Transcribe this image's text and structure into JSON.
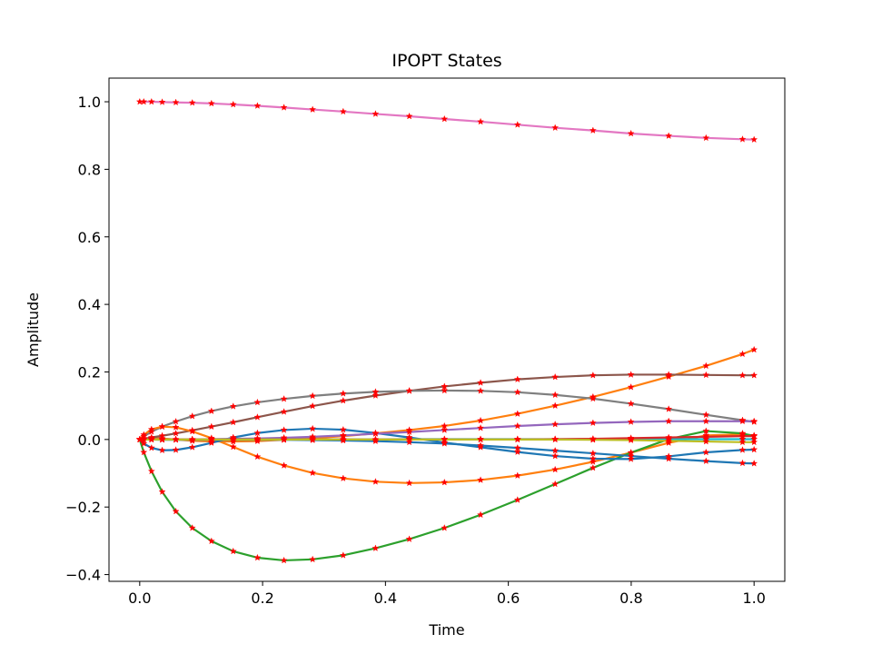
{
  "chart_data": {
    "type": "line",
    "title": "IPOPT States",
    "xlabel": "Time",
    "ylabel": "Amplitude",
    "xlim": [
      -0.05,
      1.05
    ],
    "ylim": [
      -0.42,
      1.07
    ],
    "xticks": [
      0.0,
      0.2,
      0.4,
      0.6,
      0.8,
      1.0
    ],
    "xtick_labels": [
      "0.0",
      "0.2",
      "0.4",
      "0.6",
      "0.8",
      "1.0"
    ],
    "yticks": [
      -0.4,
      -0.2,
      0.0,
      0.2,
      0.4,
      0.6,
      0.8,
      1.0
    ],
    "ytick_labels": [
      "−0.4",
      "−0.2",
      "0.0",
      "0.2",
      "0.4",
      "0.6",
      "0.8",
      "1.0"
    ],
    "grid": false,
    "legend": "none",
    "marker": {
      "shape": "star",
      "color": "#ff0000"
    },
    "x": [
      0.0,
      0.0066,
      0.0192,
      0.0366,
      0.0588,
      0.0856,
      0.1168,
      0.1522,
      0.1916,
      0.2348,
      0.2814,
      0.3312,
      0.3838,
      0.4388,
      0.496,
      0.5548,
      0.615,
      0.6762,
      0.7378,
      0.7996,
      0.861,
      0.9218,
      0.9812,
      1.0
    ],
    "series": [
      {
        "color": "#e377c2",
        "values": [
          1.0,
          1.0,
          1.0,
          0.999,
          0.998,
          0.997,
          0.995,
          0.992,
          0.988,
          0.983,
          0.977,
          0.971,
          0.964,
          0.957,
          0.949,
          0.941,
          0.932,
          0.923,
          0.915,
          0.906,
          0.899,
          0.893,
          0.889,
          0.888
        ]
      },
      {
        "color": "#ff7f0e",
        "values": [
          0.0,
          0.003,
          0.004,
          0.003,
          0.0,
          -0.004,
          -0.006,
          -0.006,
          -0.005,
          -0.001,
          0.004,
          0.01,
          0.018,
          0.028,
          0.04,
          0.056,
          0.076,
          0.1,
          0.126,
          0.155,
          0.186,
          0.218,
          0.253,
          0.266
        ]
      },
      {
        "color": "#8c564b",
        "values": [
          0.0,
          0.002,
          0.006,
          0.011,
          0.018,
          0.027,
          0.038,
          0.051,
          0.066,
          0.082,
          0.099,
          0.115,
          0.13,
          0.144,
          0.157,
          0.168,
          0.178,
          0.185,
          0.19,
          0.192,
          0.192,
          0.191,
          0.19,
          0.19
        ]
      },
      {
        "color": "#7f7f7f",
        "values": [
          0.0,
          0.009,
          0.023,
          0.038,
          0.053,
          0.069,
          0.084,
          0.098,
          0.11,
          0.12,
          0.129,
          0.136,
          0.141,
          0.144,
          0.145,
          0.144,
          0.14,
          0.132,
          0.121,
          0.106,
          0.09,
          0.073,
          0.057,
          0.052
        ]
      },
      {
        "color": "#ff7f0e",
        "values": [
          0.0,
          0.014,
          0.03,
          0.038,
          0.036,
          0.024,
          0.004,
          -0.022,
          -0.051,
          -0.077,
          -0.099,
          -0.115,
          -0.125,
          -0.129,
          -0.127,
          -0.12,
          -0.107,
          -0.089,
          -0.066,
          -0.039,
          -0.01,
          0.012,
          0.015,
          0.012
        ]
      },
      {
        "color": "#2ca02c",
        "values": [
          0.0,
          -0.038,
          -0.094,
          -0.155,
          -0.213,
          -0.262,
          -0.301,
          -0.331,
          -0.35,
          -0.358,
          -0.355,
          -0.343,
          -0.322,
          -0.295,
          -0.262,
          -0.223,
          -0.179,
          -0.132,
          -0.084,
          -0.039,
          0.001,
          0.025,
          0.018,
          0.01
        ]
      },
      {
        "color": "#1f77b4",
        "values": [
          0.0,
          -0.012,
          -0.025,
          -0.032,
          -0.031,
          -0.023,
          -0.01,
          0.006,
          0.019,
          0.028,
          0.032,
          0.029,
          0.019,
          0.006,
          -0.009,
          -0.023,
          -0.037,
          -0.049,
          -0.057,
          -0.058,
          -0.05,
          -0.038,
          -0.031,
          -0.03
        ]
      },
      {
        "color": "#1f77b4",
        "values": [
          0.0,
          0.0,
          0.0,
          -0.001,
          -0.001,
          -0.001,
          -0.001,
          -0.001,
          -0.001,
          -0.001,
          -0.002,
          -0.003,
          -0.005,
          -0.008,
          -0.012,
          -0.018,
          -0.025,
          -0.033,
          -0.041,
          -0.049,
          -0.057,
          -0.064,
          -0.07,
          -0.071
        ]
      },
      {
        "color": "#9467bd",
        "values": [
          0.0,
          0.0,
          0.0,
          0.0,
          0.0,
          0.0,
          0.001,
          0.002,
          0.003,
          0.005,
          0.008,
          0.012,
          0.017,
          0.022,
          0.028,
          0.034,
          0.04,
          0.045,
          0.049,
          0.052,
          0.054,
          0.054,
          0.054,
          0.054
        ]
      },
      {
        "color": "#17becf",
        "values": [
          0.0,
          0.0,
          0.0,
          0.0,
          0.0,
          0.0,
          0.0,
          0.0,
          0.0,
          0.0,
          0.0,
          0.0,
          0.0,
          0.001,
          0.001,
          0.001,
          0.001,
          0.001,
          0.001,
          0.001,
          0.001,
          0.001,
          0.001,
          0.001
        ]
      },
      {
        "color": "#d62728",
        "values": [
          0.0,
          0.0,
          0.0,
          0.0,
          0.0,
          0.0,
          0.0,
          0.0,
          0.0,
          0.0,
          0.0,
          0.0,
          0.0,
          0.0,
          0.0,
          0.0,
          0.0,
          0.001,
          0.002,
          0.004,
          0.006,
          0.008,
          0.01,
          0.01
        ]
      },
      {
        "color": "#bcbd22",
        "values": [
          0.0,
          0.0,
          0.0,
          0.0,
          0.0,
          0.0,
          0.0,
          0.0,
          0.0,
          0.0,
          0.0,
          0.0,
          0.0,
          0.0,
          0.0,
          0.0,
          0.0,
          0.0,
          -0.001,
          -0.002,
          -0.004,
          -0.006,
          -0.008,
          -0.008
        ]
      }
    ]
  }
}
